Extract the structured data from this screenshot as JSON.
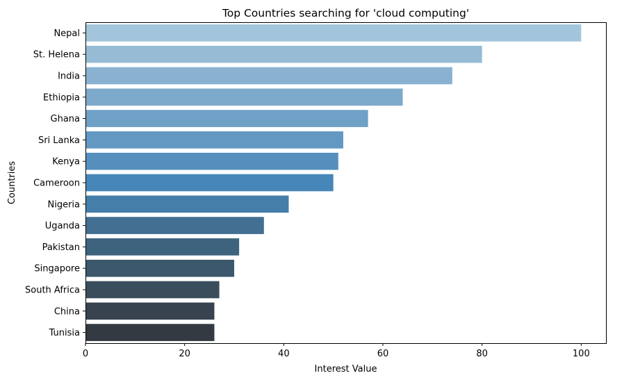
{
  "chart_data": {
    "type": "bar",
    "orientation": "horizontal",
    "title": "Top Countries searching for 'cloud computing'",
    "xlabel": "Interest Value",
    "ylabel": "Countries",
    "xlim": [
      0,
      105
    ],
    "xticks": [
      0,
      20,
      40,
      60,
      80,
      100
    ],
    "grid": false,
    "legend": "none",
    "categories": [
      "Nepal",
      "St. Helena",
      "India",
      "Ethiopia",
      "Ghana",
      "Sri Lanka",
      "Kenya",
      "Cameroon",
      "Nigeria",
      "Uganda",
      "Pakistan",
      "Singapore",
      "South Africa",
      "China",
      "Tunisia"
    ],
    "values": [
      100,
      80,
      74,
      64,
      57,
      52,
      51,
      50,
      41,
      36,
      31,
      30,
      27,
      26,
      26
    ],
    "colors": [
      "#a3c5db",
      "#97bbd5",
      "#8ab2d0",
      "#7da9cb",
      "#6fa0c6",
      "#6298c2",
      "#548fbe",
      "#4786b9",
      "#457ea8",
      "#426f92",
      "#3e637e",
      "#3b586c",
      "#394d5d",
      "#37434e",
      "#343a41"
    ]
  }
}
